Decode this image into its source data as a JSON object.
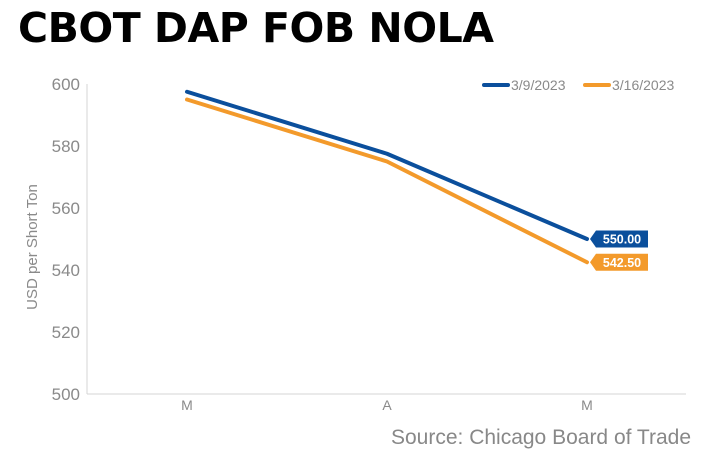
{
  "title": "CBOT DAP FOB NOLA",
  "source": "Source: Chicago Board of Trade",
  "chart_data": {
    "type": "line",
    "title": "CBOT DAP FOB NOLA",
    "xlabel": "",
    "ylabel": "USD per Short Ton",
    "categories": [
      "M",
      "A",
      "M"
    ],
    "ylim": [
      500,
      600
    ],
    "yticks": [
      500,
      520,
      540,
      560,
      580,
      600
    ],
    "grid": false,
    "legend_position": "top-right",
    "series": [
      {
        "name": "3/9/2023",
        "color": "#0B4F9C",
        "values": [
          597.5,
          577.5,
          550.0
        ],
        "end_label": "550.00"
      },
      {
        "name": "3/16/2023",
        "color": "#F39A2B",
        "values": [
          595.0,
          575.0,
          542.5
        ],
        "end_label": "542.50"
      }
    ]
  }
}
